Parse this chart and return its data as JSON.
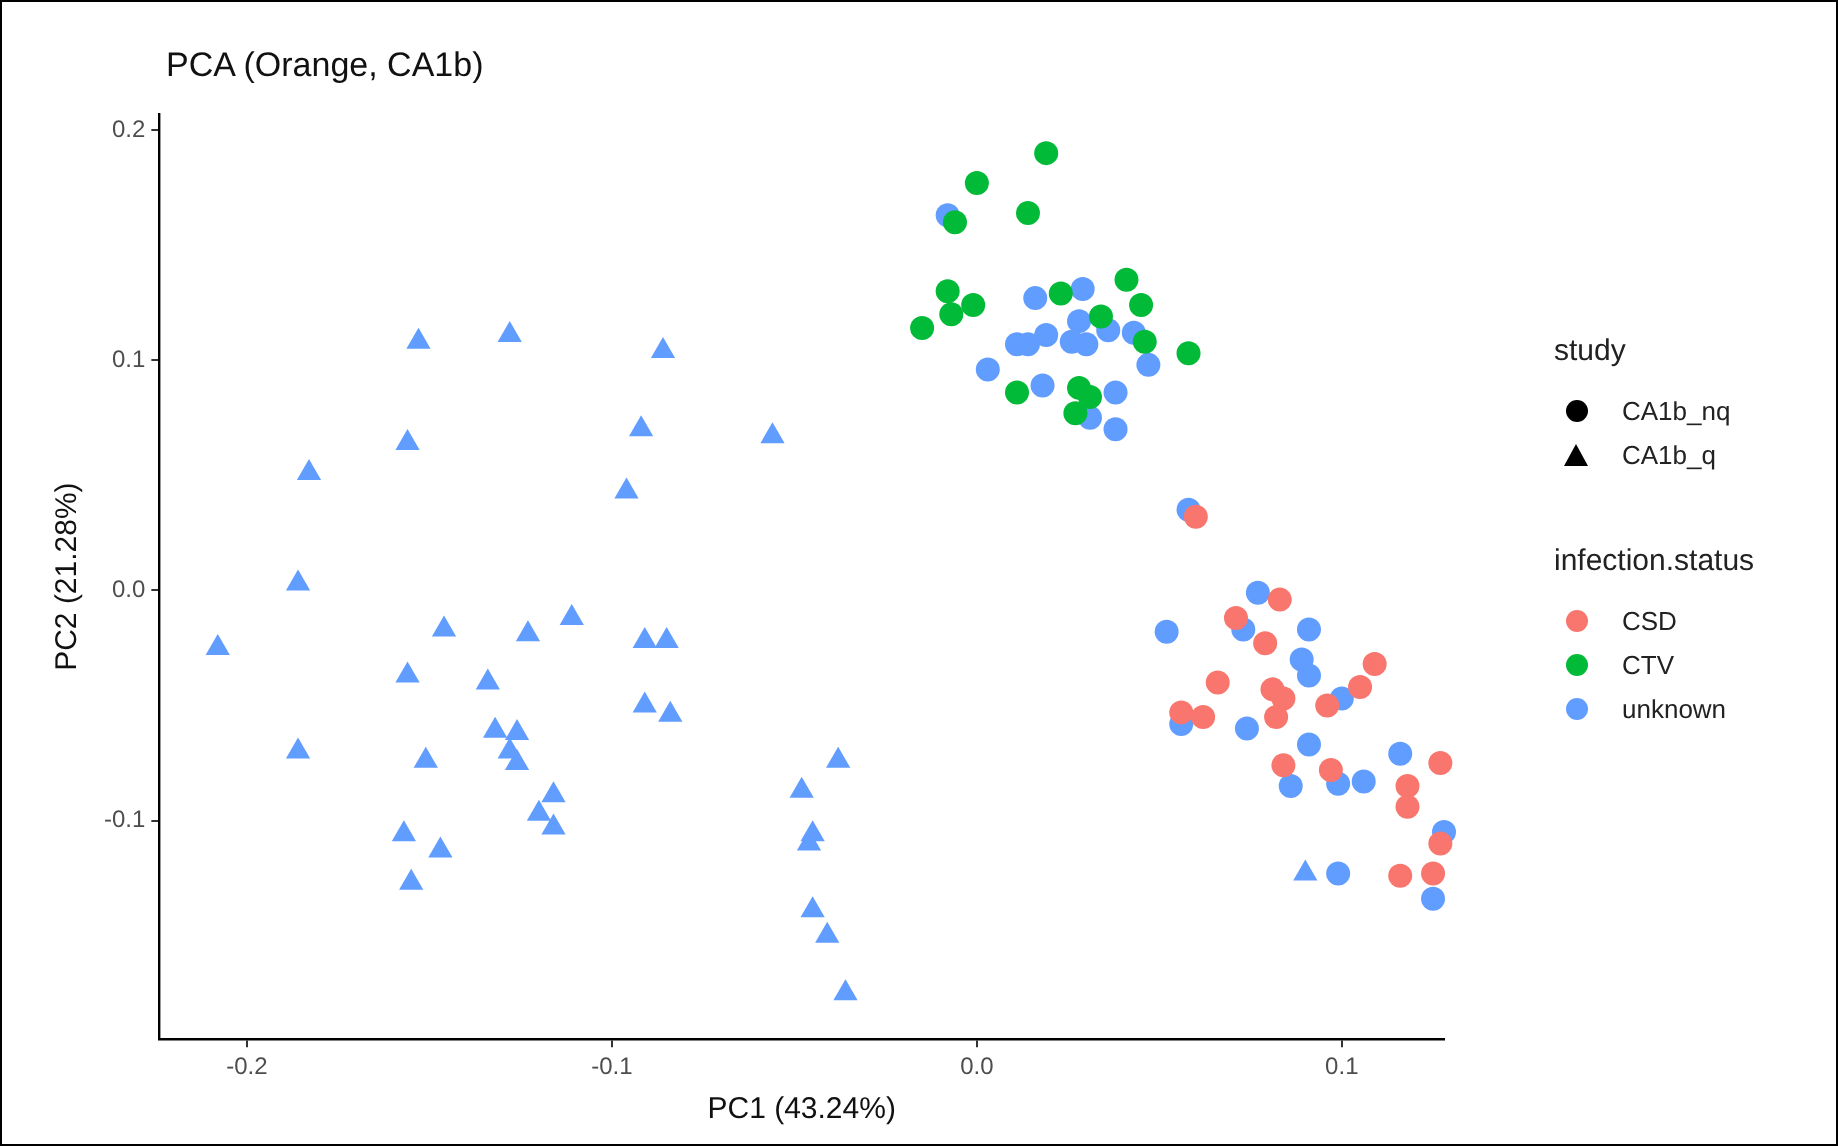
{
  "chart_data": {
    "type": "scatter",
    "title": "PCA (Orange, CA1b)",
    "xlabel": "PC1 (43.24%)",
    "ylabel": "PC2 (21.28%)",
    "legend_title": "infection.status",
    "legend": "right",
    "grid": false,
    "xlim": [
      -0.224,
      0.128
    ],
    "ylim": [
      -0.195,
      0.207
    ],
    "xticks": [
      -0.2,
      -0.1,
      {
        "value": 0,
        "label": "0.0"
      },
      0.1
    ],
    "yticks": [
      -0.1,
      {
        "value": 0,
        "label": "0.0"
      },
      0.1,
      0.2
    ],
    "annotations": [
      "study",
      "CA1b_nq",
      "CA1b_q"
    ],
    "series": [
      {
        "marker": "triangle",
        "color": "#619cff",
        "x": [
          -0.208,
          -0.183,
          -0.186,
          -0.186,
          -0.153,
          -0.156,
          -0.128,
          -0.086,
          -0.092,
          -0.096,
          -0.056,
          -0.146,
          -0.156,
          -0.134,
          -0.123,
          -0.111,
          -0.151,
          -0.132,
          -0.126,
          -0.126,
          -0.128,
          -0.116,
          -0.12,
          -0.116,
          -0.157,
          -0.147,
          -0.155,
          -0.091,
          -0.085,
          -0.091,
          -0.084,
          -0.038,
          -0.048,
          -0.046,
          -0.045,
          -0.045,
          -0.041,
          -0.036,
          0.09
        ],
        "values": [
          -0.025,
          0.051,
          0.003,
          -0.07,
          0.108,
          0.064,
          0.111,
          0.104,
          0.07,
          0.043,
          0.067,
          -0.017,
          -0.037,
          -0.04,
          -0.019,
          -0.012,
          -0.074,
          -0.061,
          -0.062,
          -0.075,
          -0.07,
          -0.089,
          -0.097,
          -0.103,
          -0.106,
          -0.113,
          -0.127,
          -0.022,
          -0.022,
          -0.05,
          -0.054,
          -0.074,
          -0.087,
          -0.11,
          -0.106,
          -0.139,
          -0.15,
          -0.175,
          -0.123
        ]
      },
      {
        "marker": "circle",
        "name": "CSD",
        "color": "#f8766d",
        "x": [
          0.06,
          0.083,
          0.071,
          0.079,
          0.109,
          0.105,
          0.066,
          0.081,
          0.084,
          0.096,
          0.056,
          0.062,
          0.082,
          0.127,
          0.084,
          0.097,
          0.118,
          0.118,
          0.127,
          0.116,
          0.125
        ],
        "values": [
          0.032,
          -0.004,
          -0.012,
          -0.023,
          -0.032,
          -0.042,
          -0.04,
          -0.043,
          -0.047,
          -0.05,
          -0.053,
          -0.055,
          -0.055,
          -0.075,
          -0.076,
          -0.078,
          -0.085,
          -0.094,
          -0.11,
          -0.124,
          -0.123
        ]
      },
      {
        "marker": "circle",
        "name": "CTV",
        "color": "#00ba38",
        "x": [
          0.019,
          0,
          0.014,
          -0.006,
          0.041,
          -0.008,
          -0.001,
          -0.007,
          0.023,
          0.045,
          -0.015,
          0.034,
          0.046,
          0.058,
          0.011,
          0.028,
          0.031,
          0.027
        ],
        "values": [
          0.19,
          0.177,
          0.164,
          0.16,
          0.135,
          0.13,
          0.124,
          0.12,
          0.129,
          0.124,
          0.114,
          0.119,
          0.108,
          0.103,
          0.086,
          0.088,
          0.084,
          0.077
        ]
      },
      {
        "marker": "circle",
        "name": "unknown",
        "color": "#619cff",
        "x": [
          -0.008,
          0.016,
          0.029,
          0.028,
          0.036,
          0.043,
          0.011,
          0.014,
          0.019,
          0.026,
          0.03,
          0.047,
          0.003,
          0.018,
          0.038,
          0.031,
          0.038,
          0.058,
          0.077,
          0.073,
          0.052,
          0.091,
          0.089,
          0.091,
          0.1,
          0.056,
          0.074,
          0.091,
          0.116,
          0.086,
          0.099,
          0.106,
          0.128,
          0.099,
          0.125
        ],
        "values": [
          0.163,
          0.127,
          0.131,
          0.117,
          0.113,
          0.112,
          0.107,
          0.107,
          0.111,
          0.108,
          0.107,
          0.098,
          0.096,
          0.089,
          0.086,
          0.075,
          0.07,
          0.035,
          -0.001,
          -0.017,
          -0.018,
          -0.017,
          -0.03,
          -0.037,
          -0.047,
          -0.058,
          -0.06,
          -0.067,
          -0.071,
          -0.085,
          -0.084,
          -0.083,
          -0.105,
          -0.123,
          -0.134
        ]
      }
    ]
  }
}
